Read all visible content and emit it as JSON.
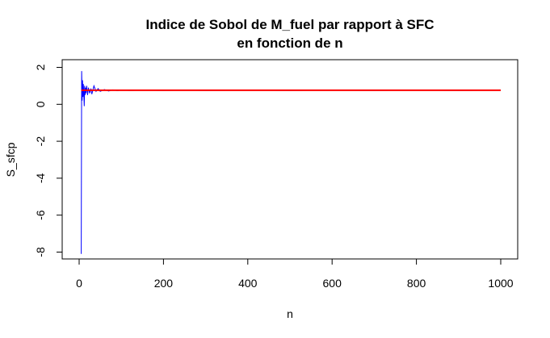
{
  "chart_data": {
    "type": "line",
    "title": "Indice de Sobol de M_fuel par rapport à SFC",
    "subtitle": "en fonction de n",
    "xlabel": "n",
    "ylabel": "S_sfcp",
    "xlim": [
      0,
      1000
    ],
    "ylim": [
      -8.2,
      2
    ],
    "x_ticks": [
      0,
      200,
      400,
      600,
      800,
      1000
    ],
    "y_ticks": [
      -8,
      -6,
      -4,
      -2,
      0,
      2
    ],
    "grid": false,
    "legend": "none",
    "series": [
      {
        "color": "#0000ff",
        "x": [
          5,
          6,
          7,
          8,
          9,
          10,
          11,
          12,
          13,
          14,
          15,
          16,
          18,
          20,
          22,
          25,
          28,
          30,
          35,
          40,
          45,
          50,
          60,
          70,
          80,
          90,
          100,
          120,
          150,
          200,
          250,
          300,
          400,
          500,
          600,
          700,
          800,
          900,
          1000
        ],
        "y": [
          -8.1,
          1.8,
          0.2,
          1.3,
          0.4,
          1.1,
          0.6,
          -0.1,
          1.0,
          0.5,
          0.9,
          0.6,
          1.0,
          0.5,
          0.9,
          0.6,
          0.85,
          0.55,
          1.0,
          0.7,
          0.85,
          0.7,
          0.8,
          0.72,
          0.78,
          0.74,
          0.77,
          0.75,
          0.76,
          0.75,
          0.76,
          0.75,
          0.76,
          0.75,
          0.76,
          0.75,
          0.76,
          0.75,
          0.76
        ]
      },
      {
        "color": "#ff0000",
        "x": [
          5,
          1000
        ],
        "y": [
          0.76,
          0.76
        ]
      }
    ]
  }
}
